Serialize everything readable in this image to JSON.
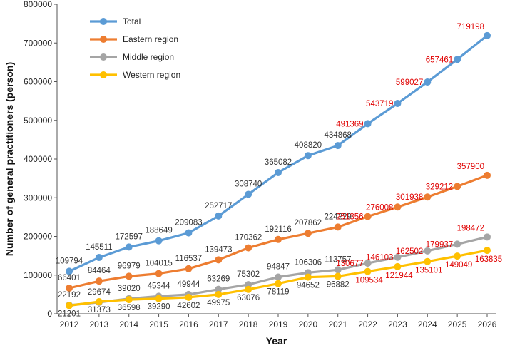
{
  "chart_data": {
    "type": "line",
    "title": "",
    "xlabel": "Year",
    "ylabel": "Number of general practitioners (person)",
    "ylim": [
      0,
      800000
    ],
    "yticks": [
      0,
      100000,
      200000,
      300000,
      400000,
      500000,
      600000,
      700000,
      800000
    ],
    "ytick_labels": [
      "0",
      "100000",
      "200000",
      "300000",
      "400000",
      "500000",
      "600000",
      "700000",
      "800000"
    ],
    "categories": [
      "2012",
      "2013",
      "2014",
      "2015",
      "2016",
      "2017",
      "2018",
      "2019",
      "2020",
      "2021",
      "2022",
      "2023",
      "2024",
      "2025",
      "2026"
    ],
    "legend_position": "top-left",
    "label_colors": {
      "observed": "#333333",
      "projected": "#e00000"
    },
    "series": [
      {
        "name": "Total",
        "color": "#5b9bd5",
        "values": [
          109794,
          145511,
          172597,
          188649,
          209083,
          252717,
          308740,
          365082,
          408820,
          434868,
          491369,
          543719,
          599027,
          657461,
          719198
        ],
        "labels": [
          "109794",
          "145511",
          "172597",
          "188649",
          "209083",
          "252717",
          "308740",
          "365082",
          "408820",
          "434868",
          "491369",
          "543719",
          "599027",
          "657461",
          "719198"
        ],
        "projected_from_index": 10
      },
      {
        "name": "Eastern region",
        "color": "#ed7d31",
        "values": [
          66401,
          84464,
          96979,
          104015,
          116537,
          139473,
          170362,
          192116,
          207862,
          224229,
          251356,
          276008,
          301938,
          329212,
          357900
        ],
        "labels": [
          "66401",
          "84464",
          "96979",
          "104015",
          "116537",
          "139473",
          "170362",
          "192116",
          "207862",
          "224229",
          "251356",
          "276008",
          "301938",
          "329212",
          "357900"
        ],
        "projected_from_index": 10
      },
      {
        "name": "Middle region",
        "color": "#a5a5a5",
        "values": [
          22192,
          29674,
          39020,
          45344,
          49944,
          63269,
          75302,
          94847,
          106306,
          113757,
          130677,
          146103,
          162502,
          179937,
          198472
        ],
        "labels": [
          "22192",
          "29674",
          "39020",
          "45344",
          "49944",
          "63269",
          "75302",
          "94847",
          "106306",
          "113757",
          "130677",
          "146103",
          "162502",
          "179937",
          "198472"
        ],
        "projected_from_index": 10
      },
      {
        "name": "Western region",
        "color": "#ffc000",
        "values": [
          21201,
          31373,
          36598,
          39290,
          42602,
          49975,
          63076,
          78119,
          94652,
          96882,
          109534,
          121944,
          135101,
          149049,
          163835
        ],
        "labels": [
          "21201",
          "31373",
          "36598",
          "39290",
          "42602",
          "49975",
          "63076",
          "78119",
          "94652",
          "96882",
          "109534",
          "121944",
          "135101",
          "149049",
          "163835"
        ],
        "projected_from_index": 10
      }
    ]
  }
}
